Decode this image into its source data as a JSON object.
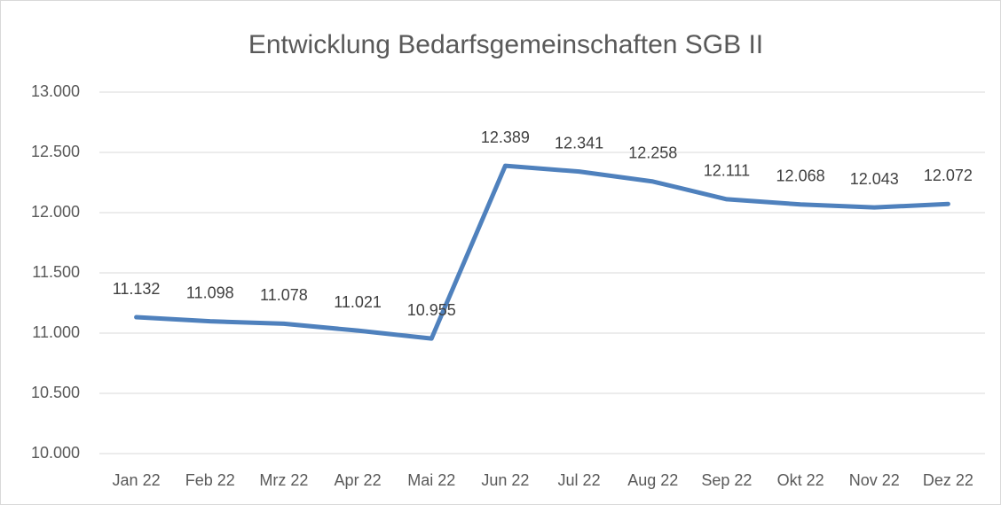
{
  "chart_data": {
    "type": "line",
    "title": "Entwicklung Bedarfsgemeinschaften SGB II",
    "categories": [
      "Jan 22",
      "Feb 22",
      "Mrz 22",
      "Apr 22",
      "Mai 22",
      "Jun 22",
      "Jul 22",
      "Aug 22",
      "Sep 22",
      "Okt 22",
      "Nov 22",
      "Dez 22"
    ],
    "values": [
      11132,
      11098,
      11078,
      11021,
      10955,
      12389,
      12341,
      12258,
      12111,
      12068,
      12043,
      12072
    ],
    "value_labels": [
      "11.132",
      "11.098",
      "11.078",
      "11.021",
      "10.955",
      "12.389",
      "12.341",
      "12.258",
      "12.111",
      "12.068",
      "12.043",
      "12.072"
    ],
    "color": "#4f81bd",
    "ylim": [
      10000,
      13000
    ],
    "yticks": [
      {
        "value": 10000,
        "label": "10.000"
      },
      {
        "value": 10500,
        "label": "10.500"
      },
      {
        "value": 11000,
        "label": "11.000"
      },
      {
        "value": 11500,
        "label": "11.500"
      },
      {
        "value": 12000,
        "label": "12.000"
      },
      {
        "value": 12500,
        "label": "12.500"
      },
      {
        "value": 13000,
        "label": "13.000"
      }
    ],
    "grid": true
  }
}
